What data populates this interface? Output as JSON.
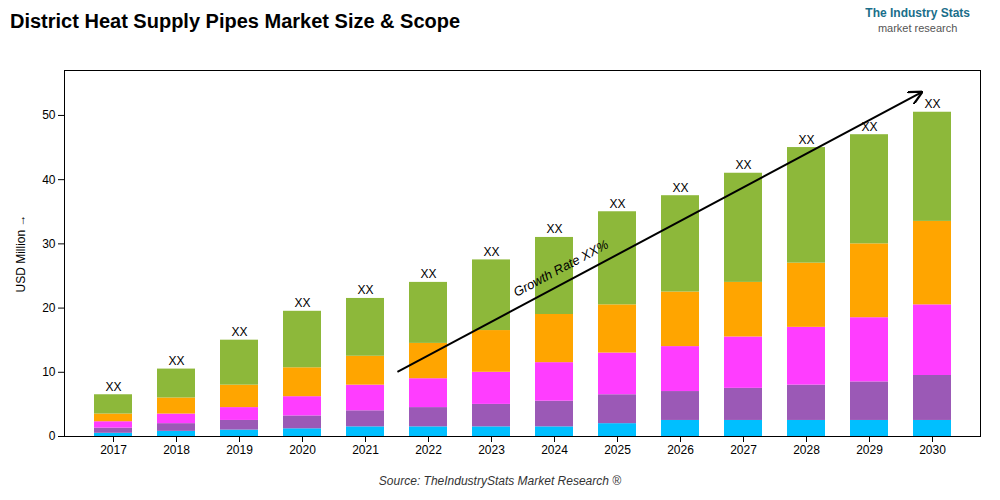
{
  "chart_data": {
    "type": "bar",
    "stacked": true,
    "title": "District Heat Supply Pipes Market Size & Scope",
    "ylabel": "USD Million",
    "categories": [
      2017,
      2018,
      2019,
      2020,
      2021,
      2022,
      2023,
      2024,
      2025,
      2026,
      2027,
      2028,
      2029,
      2030
    ],
    "series": [
      {
        "color": "#00BFFF",
        "values": [
          0.5,
          0.8,
          1.0,
          1.2,
          1.5,
          1.5,
          1.5,
          1.5,
          2.0,
          2.5,
          2.5,
          2.5,
          2.5,
          2.5
        ]
      },
      {
        "color": "#9B59B6",
        "values": [
          0.8,
          1.2,
          1.5,
          2.0,
          2.5,
          3.0,
          3.5,
          4.0,
          4.5,
          4.5,
          5.0,
          5.5,
          6.0,
          7.0
        ]
      },
      {
        "color": "#FF3DFF",
        "values": [
          1.0,
          1.5,
          2.0,
          3.0,
          4.0,
          4.5,
          5.0,
          6.0,
          6.5,
          7.0,
          8.0,
          9.0,
          10.0,
          11.0
        ]
      },
      {
        "color": "#FFA500",
        "values": [
          1.2,
          2.5,
          3.5,
          4.5,
          4.5,
          5.5,
          6.5,
          7.5,
          7.5,
          8.5,
          8.5,
          10.0,
          11.5,
          13.0
        ]
      },
      {
        "color": "#8DB83A",
        "values": [
          3.0,
          4.5,
          7.0,
          8.8,
          9.0,
          9.5,
          11.0,
          12.0,
          14.5,
          15.0,
          17.0,
          18.0,
          17.0,
          17.0
        ]
      }
    ],
    "ylim": [
      0,
      57
    ],
    "yticks": [
      0,
      10,
      20,
      30,
      40,
      50
    ],
    "grid": false,
    "top_labels": [
      "XX",
      "XX",
      "XX",
      "XX",
      "XX",
      "XX",
      "XX",
      "XX",
      "XX",
      "XX",
      "XX",
      "XX",
      "XX",
      "XX"
    ],
    "annotations": [
      "Growth Rate XX%"
    ],
    "source": "Source: TheIndustryStats Market Research ®",
    "logo": [
      "The Industry Stats",
      "market research"
    ]
  }
}
